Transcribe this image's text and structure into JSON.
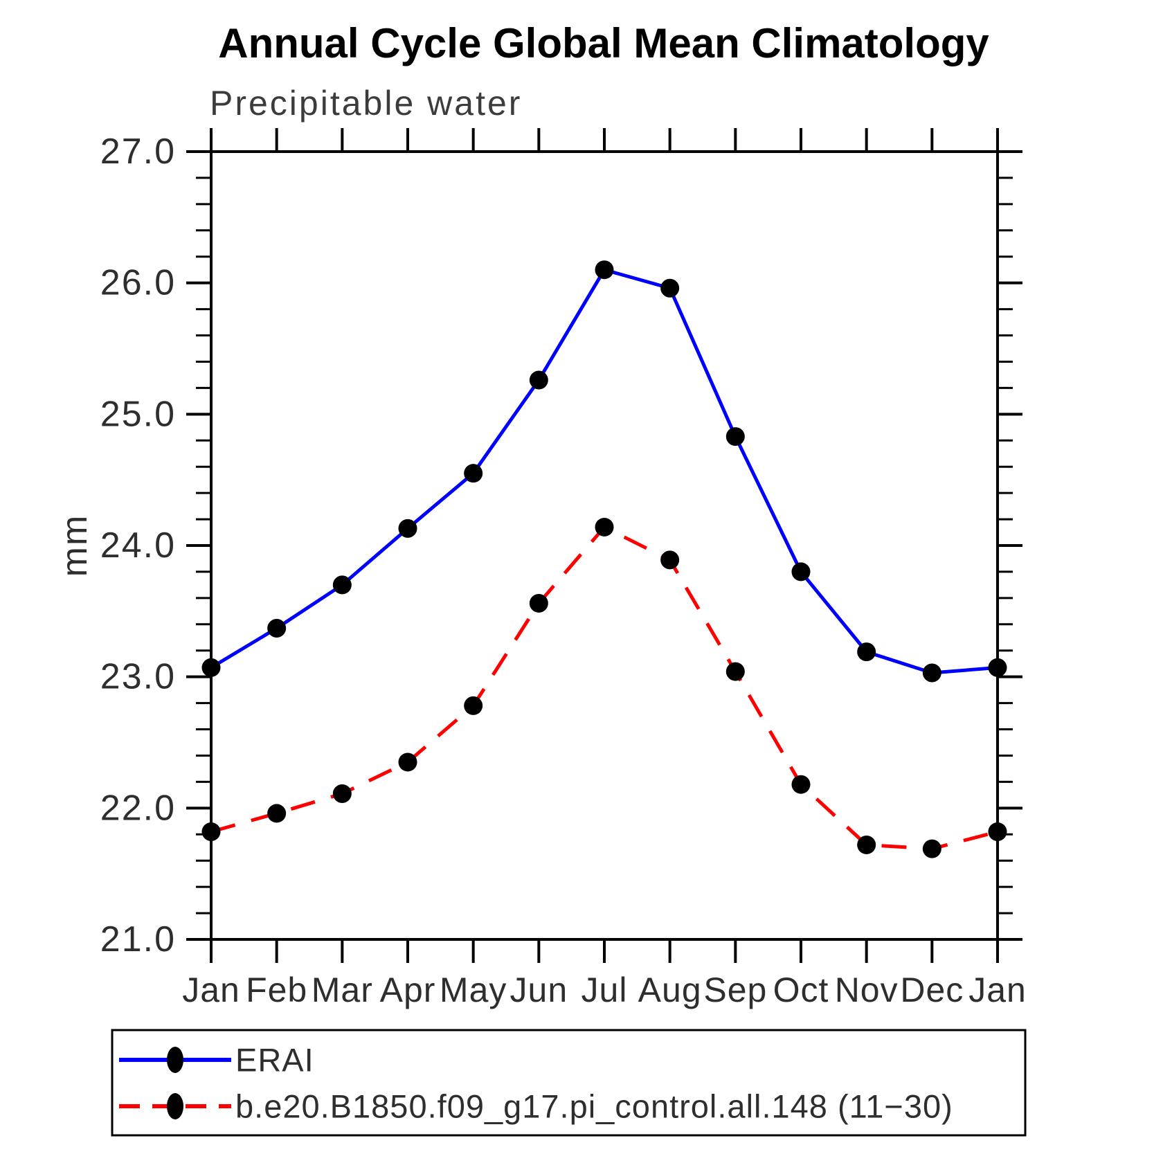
{
  "page": {
    "background": "#ffffff",
    "axis_color": "#000000"
  },
  "chart_data": {
    "type": "line",
    "title": "Annual Cycle Global Mean Climatology",
    "subtitle": "Precipitable water",
    "ylabel": "mm",
    "xlabel": "",
    "x_categories": [
      "Jan",
      "Feb",
      "Mar",
      "Apr",
      "May",
      "Jun",
      "Jul",
      "Aug",
      "Sep",
      "Oct",
      "Nov",
      "Dec",
      "Jan"
    ],
    "ylim": [
      21.0,
      27.0
    ],
    "ytick_interval": 1.0,
    "ytick_labels": [
      "21.0",
      "22.0",
      "23.0",
      "24.0",
      "25.0",
      "26.0",
      "27.0"
    ],
    "y_minor_tick_interval": 0.2,
    "grid": false,
    "legend_position": "bottom-left-box",
    "series": [
      {
        "name": "ERAI",
        "line_color": "#0000ff",
        "line_style": "solid",
        "marker": "filled-circle",
        "marker_color": "#000000",
        "values": [
          23.07,
          23.37,
          23.7,
          24.13,
          24.55,
          25.26,
          26.1,
          25.96,
          24.83,
          23.8,
          23.19,
          23.03,
          23.07
        ]
      },
      {
        "name": "b.e20.B1850.f09_g17.pi_control.all.148 (11−30)",
        "line_color": "#ff0000",
        "line_style": "dashed",
        "marker": "filled-circle",
        "marker_color": "#000000",
        "values": [
          21.82,
          21.96,
          22.11,
          22.35,
          22.78,
          23.56,
          24.14,
          23.89,
          23.04,
          22.18,
          21.72,
          21.69,
          21.82
        ]
      }
    ]
  }
}
